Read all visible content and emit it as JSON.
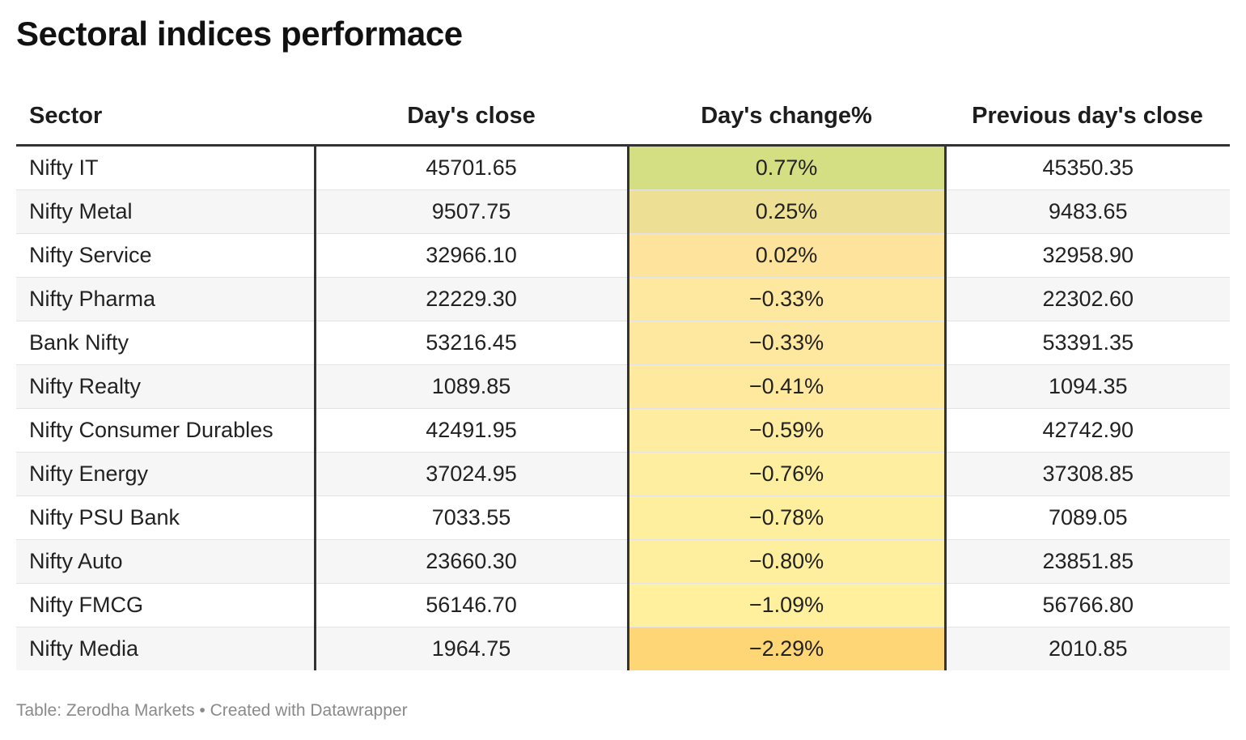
{
  "chart_data": {
    "type": "table",
    "title": "Sectoral indices performace",
    "columns": [
      "Sector",
      "Day's close",
      "Day's change%",
      "Previous day's close"
    ],
    "rows": [
      {
        "sector": "Nifty IT",
        "close": "45701.65",
        "change": "0.77%",
        "prev": "45350.35",
        "change_value": 0.77,
        "color": "#d4de82"
      },
      {
        "sector": "Nifty Metal",
        "close": "9507.75",
        "change": "0.25%",
        "prev": "9483.65",
        "change_value": 0.25,
        "color": "#ede095"
      },
      {
        "sector": "Nifty Service",
        "close": "32966.10",
        "change": "0.02%",
        "prev": "32958.90",
        "change_value": 0.02,
        "color": "#fde39b"
      },
      {
        "sector": "Nifty Pharma",
        "close": "22229.30",
        "change": "−0.33%",
        "prev": "22302.60",
        "change_value": -0.33,
        "color": "#fee79e"
      },
      {
        "sector": "Bank Nifty",
        "close": "53216.45",
        "change": "−0.33%",
        "prev": "53391.35",
        "change_value": -0.33,
        "color": "#fee79e"
      },
      {
        "sector": "Nifty Realty",
        "close": "1089.85",
        "change": "−0.41%",
        "prev": "1094.35",
        "change_value": -0.41,
        "color": "#fee99f"
      },
      {
        "sector": "Nifty Consumer Durables",
        "close": "42491.95",
        "change": "−0.59%",
        "prev": "42742.90",
        "change_value": -0.59,
        "color": "#feeca0"
      },
      {
        "sector": "Nifty Energy",
        "close": "37024.95",
        "change": "−0.76%",
        "prev": "37308.85",
        "change_value": -0.76,
        "color": "#feee9f"
      },
      {
        "sector": "Nifty PSU Bank",
        "close": "7033.55",
        "change": "−0.78%",
        "prev": "7089.05",
        "change_value": -0.78,
        "color": "#feef9f"
      },
      {
        "sector": "Nifty Auto",
        "close": "23660.30",
        "change": "−0.80%",
        "prev": "23851.85",
        "change_value": -0.8,
        "color": "#feef9f"
      },
      {
        "sector": "Nifty FMCG",
        "close": "56146.70",
        "change": "−1.09%",
        "prev": "56766.80",
        "change_value": -1.09,
        "color": "#fef09d"
      },
      {
        "sector": "Nifty Media",
        "close": "1964.75",
        "change": "−2.29%",
        "prev": "2010.85",
        "change_value": -2.29,
        "color": "#fed676"
      }
    ]
  },
  "footer": {
    "source": "Table: Zerodha Markets • Created with Datawrapper"
  }
}
